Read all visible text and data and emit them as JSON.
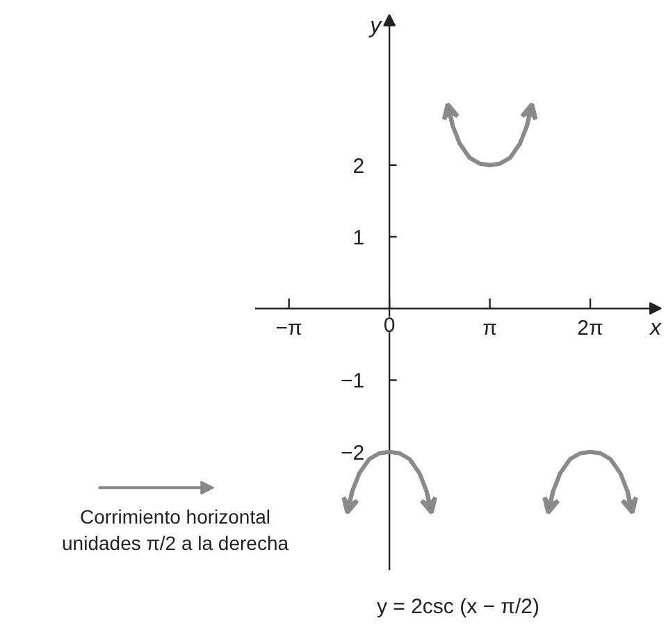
{
  "chart_data": {
    "type": "line",
    "title": "y = 2csc (x − π/2)",
    "xlabel": "x",
    "ylabel": "y",
    "annotations": [
      "Corrimiento horizontal\nunidades π/2 a la derecha"
    ],
    "xlim": [
      -4.2,
      8.5
    ],
    "ylim": [
      -3.65,
      4.1
    ],
    "xticks": [
      {
        "value": -3.1416,
        "label": "−π"
      },
      {
        "value": 0,
        "label": "0"
      },
      {
        "value": 3.1416,
        "label": "π"
      },
      {
        "value": 6.2832,
        "label": "2π"
      }
    ],
    "yticks": [
      {
        "value": -2,
        "label": "−2"
      },
      {
        "value": -1,
        "label": "−1"
      },
      1,
      2
    ],
    "marker": "none",
    "line_style": "solid",
    "series": [
      {
        "color": "#8a8a8a",
        "x": [
          -1.319,
          -1.162,
          -0.942,
          -0.628,
          -0.314,
          0,
          0.314,
          0.628,
          0.942,
          1.162,
          1.319
        ],
        "values": [
          -2.85,
          -2.55,
          -2.3,
          -2.1,
          -2.02,
          -2.0,
          -2.02,
          -2.1,
          -2.3,
          -2.55,
          -2.85
        ]
      },
      {
        "color": "#8a8a8a",
        "x": [
          1.822,
          1.979,
          2.199,
          2.513,
          2.827,
          3.142,
          3.456,
          3.77,
          4.084,
          4.304,
          4.461
        ],
        "values": [
          2.85,
          2.55,
          2.3,
          2.1,
          2.02,
          2.0,
          2.02,
          2.1,
          2.3,
          2.55,
          2.85
        ]
      },
      {
        "color": "#8a8a8a",
        "x": [
          4.964,
          5.121,
          5.341,
          5.655,
          5.969,
          6.283,
          6.597,
          6.911,
          7.225,
          7.445,
          7.602
        ],
        "values": [
          -2.85,
          -2.55,
          -2.3,
          -2.1,
          -2.02,
          -2.0,
          -2.02,
          -2.1,
          -2.3,
          -2.55,
          -2.85
        ]
      }
    ]
  }
}
